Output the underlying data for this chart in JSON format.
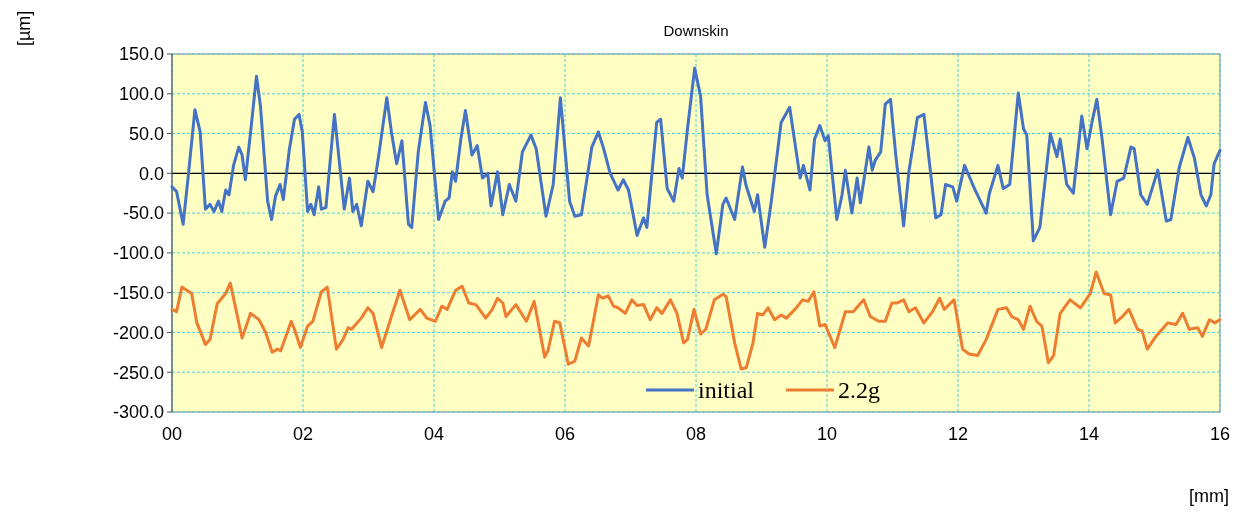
{
  "chart_data": {
    "type": "line",
    "title": "Downskin",
    "xlabel": "[mm]",
    "ylabel": "[µm]",
    "xlim": [
      0,
      16
    ],
    "xticks": [
      {
        "value": 0,
        "label": "00"
      },
      {
        "value": 2,
        "label": "02"
      },
      {
        "value": 4,
        "label": "04"
      },
      {
        "value": 6,
        "label": "06"
      },
      {
        "value": 8,
        "label": "08"
      },
      10,
      12,
      14,
      16
    ],
    "ylim": [
      -300,
      150
    ],
    "yticks": [
      {
        "value": -300,
        "label": "-300.0"
      },
      {
        "value": -250,
        "label": "-250.0"
      },
      {
        "value": -200,
        "label": "-200.0"
      },
      {
        "value": -150,
        "label": "-150.0"
      },
      {
        "value": -100,
        "label": "-100.0"
      },
      {
        "value": -50,
        "label": "-50.0"
      },
      {
        "value": 0,
        "label": "0.0"
      },
      {
        "value": 50,
        "label": "50.0"
      },
      {
        "value": 100,
        "label": "100.0"
      },
      {
        "value": 150,
        "label": "150.0"
      }
    ],
    "grid": true,
    "legend": "bottom",
    "marker": "none",
    "line_style": "solid",
    "ref_lines": [
      {
        "axis": "y",
        "value": 0,
        "color": "#000000"
      }
    ],
    "series": [
      {
        "name": "initial",
        "color": "#4472c4",
        "x": [
          0,
          0.07,
          0.17,
          0.25,
          0.35,
          0.43,
          0.51,
          0.58,
          0.64,
          0.71,
          0.76,
          0.82,
          0.87,
          0.94,
          1.02,
          1.07,
          1.12,
          1.2,
          1.29,
          1.35,
          1.46,
          1.52,
          1.58,
          1.65,
          1.7,
          1.79,
          1.87,
          1.94,
          1.99,
          2.07,
          2.12,
          2.17,
          2.24,
          2.28,
          2.35,
          2.48,
          2.63,
          2.71,
          2.76,
          2.82,
          2.89,
          2.99,
          3.07,
          3.15,
          3.28,
          3.35,
          3.43,
          3.51,
          3.61,
          3.66,
          3.76,
          3.87,
          3.94,
          4.07,
          4.17,
          4.23,
          4.28,
          4.33,
          4.41,
          4.48,
          4.58,
          4.66,
          4.74,
          4.82,
          4.87,
          4.97,
          5.05,
          5.15,
          5.25,
          5.35,
          5.48,
          5.56,
          5.71,
          5.82,
          5.93,
          6.07,
          6.15,
          6.25,
          6.41,
          6.51,
          6.59,
          6.69,
          6.81,
          6.89,
          6.97,
          7.1,
          7.2,
          7.25,
          7.4,
          7.46,
          7.56,
          7.66,
          7.74,
          7.79,
          7.87,
          7.98,
          8.07,
          8.17,
          8.31,
          8.41,
          8.46,
          8.59,
          8.71,
          8.76,
          8.89,
          8.94,
          9.05,
          9.15,
          9.3,
          9.43,
          9.59,
          9.64,
          9.74,
          9.81,
          9.89,
          9.97,
          10.02,
          10.15,
          10.23,
          10.28,
          10.38,
          10.46,
          10.51,
          10.64,
          10.69,
          10.74,
          10.82,
          10.89,
          10.97,
          11.05,
          11.17,
          11.25,
          11.38,
          11.48,
          11.66,
          11.74,
          11.81,
          11.92,
          11.98,
          12.1,
          12.25,
          12.43,
          12.48,
          12.61,
          12.69,
          12.79,
          12.92,
          13,
          13.05,
          13.15,
          13.25,
          13.41,
          13.51,
          13.56,
          13.66,
          13.76,
          13.89,
          13.97,
          14.05,
          14.12,
          14.2,
          14.33,
          14.43,
          14.53,
          14.64,
          14.69,
          14.79,
          14.89,
          15.05,
          15.18,
          15.25,
          15.38,
          15.51,
          15.61,
          15.71,
          15.79,
          15.86,
          15.91,
          16
        ],
        "values": [
          -17,
          -23,
          -64,
          -2,
          80,
          52,
          -45,
          -39,
          -48,
          -35,
          -48,
          -21,
          -27,
          10,
          33,
          23,
          -8,
          52,
          122,
          85,
          -35,
          -58,
          -29,
          -14,
          -33,
          29,
          68,
          74,
          52,
          -48,
          -39,
          -52,
          -17,
          -45,
          -43,
          74,
          -45,
          -6,
          -48,
          -39,
          -66,
          -10,
          -23,
          19,
          95,
          52,
          12,
          41,
          -64,
          -68,
          27,
          89,
          60,
          -58,
          -35,
          -31,
          2,
          -10,
          43,
          79,
          23,
          35,
          -6,
          0,
          -41,
          2,
          -52,
          -14,
          -35,
          27,
          48,
          31,
          -54,
          -14,
          95,
          -35,
          -54,
          -52,
          33,
          52,
          31,
          0,
          -21,
          -8,
          -21,
          -78,
          -56,
          -68,
          64,
          68,
          -19,
          -35,
          6,
          -6,
          56,
          132,
          97,
          -27,
          -101,
          -39,
          -31,
          -58,
          8,
          -14,
          -48,
          -27,
          -93,
          -35,
          64,
          83,
          -6,
          10,
          -21,
          43,
          60,
          41,
          47,
          -58,
          -27,
          4,
          -50,
          -6,
          -37,
          33,
          4,
          17,
          27,
          87,
          93,
          23,
          -66,
          2,
          70,
          74,
          -56,
          -52,
          -14,
          -17,
          -35,
          10,
          -19,
          -50,
          -25,
          10,
          -19,
          -14,
          101,
          56,
          48,
          -85,
          -68,
          50,
          21,
          43,
          -14,
          -25,
          72,
          31,
          66,
          93,
          43,
          -52,
          -10,
          -6,
          33,
          31,
          -27,
          -39,
          4,
          -60,
          -58,
          8,
          45,
          19,
          -27,
          -41,
          -27,
          12,
          29
        ]
      },
      {
        "name": "2.2g",
        "color": "#ed7d31",
        "x": [
          0,
          0.07,
          0.15,
          0.3,
          0.38,
          0.51,
          0.58,
          0.69,
          0.82,
          0.89,
          1.07,
          1.2,
          1.33,
          1.43,
          1.53,
          1.61,
          1.66,
          1.82,
          1.87,
          1.96,
          2.07,
          2.15,
          2.28,
          2.37,
          2.51,
          2.61,
          2.69,
          2.74,
          2.89,
          2.99,
          3.07,
          3.2,
          3.35,
          3.48,
          3.63,
          3.79,
          3.89,
          4.02,
          4.12,
          4.2,
          4.33,
          4.43,
          4.53,
          4.64,
          4.79,
          4.89,
          4.97,
          5.05,
          5.1,
          5.25,
          5.41,
          5.53,
          5.69,
          5.74,
          5.84,
          5.92,
          6.05,
          6.15,
          6.25,
          6.36,
          6.51,
          6.58,
          6.66,
          6.74,
          6.81,
          6.92,
          7.02,
          7.1,
          7.2,
          7.3,
          7.4,
          7.48,
          7.61,
          7.71,
          7.81,
          7.87,
          7.97,
          8.07,
          8.15,
          8.28,
          8.41,
          8.46,
          8.59,
          8.69,
          8.77,
          8.87,
          8.94,
          9.02,
          9.1,
          9.2,
          9.3,
          9.38,
          9.51,
          9.63,
          9.71,
          9.8,
          9.89,
          9.97,
          10.12,
          10.28,
          10.4,
          10.56,
          10.66,
          10.79,
          10.89,
          10.99,
          11.07,
          11.17,
          11.25,
          11.35,
          11.48,
          11.61,
          11.72,
          11.79,
          11.94,
          12.07,
          12.17,
          12.3,
          12.43,
          12.61,
          12.74,
          12.82,
          12.92,
          13,
          13.1,
          13.2,
          13.28,
          13.38,
          13.46,
          13.56,
          13.71,
          13.87,
          14.02,
          14.11,
          14.23,
          14.33,
          14.4,
          14.51,
          14.61,
          14.74,
          14.81,
          14.89,
          15.02,
          15.2,
          15.33,
          15.43,
          15.53,
          15.66,
          15.73,
          15.84,
          15.92,
          16
        ],
        "values": [
          -171,
          -174,
          -143,
          -151,
          -188,
          -215,
          -209,
          -164,
          -151,
          -138,
          -207,
          -176,
          -184,
          -200,
          -225,
          -221,
          -223,
          -186,
          -196,
          -219,
          -192,
          -186,
          -149,
          -143,
          -221,
          -209,
          -194,
          -196,
          -182,
          -169,
          -176,
          -219,
          -180,
          -147,
          -184,
          -171,
          -182,
          -186,
          -167,
          -171,
          -147,
          -142,
          -163,
          -165,
          -182,
          -171,
          -157,
          -163,
          -180,
          -165,
          -186,
          -161,
          -231,
          -223,
          -186,
          -188,
          -240,
          -236,
          -207,
          -217,
          -153,
          -157,
          -154,
          -167,
          -169,
          -176,
          -159,
          -166,
          -165,
          -184,
          -169,
          -176,
          -159,
          -176,
          -213,
          -209,
          -171,
          -202,
          -196,
          -159,
          -152,
          -155,
          -213,
          -246,
          -244,
          -213,
          -176,
          -178,
          -169,
          -184,
          -178,
          -182,
          -171,
          -159,
          -161,
          -149,
          -192,
          -190,
          -219,
          -174,
          -174,
          -159,
          -180,
          -186,
          -186,
          -163,
          -163,
          -159,
          -174,
          -169,
          -188,
          -174,
          -157,
          -171,
          -159,
          -221,
          -227,
          -229,
          -209,
          -171,
          -169,
          -180,
          -184,
          -196,
          -167,
          -186,
          -192,
          -238,
          -229,
          -176,
          -159,
          -169,
          -151,
          -124,
          -151,
          -153,
          -188,
          -180,
          -171,
          -196,
          -198,
          -221,
          -205,
          -188,
          -190,
          -176,
          -196,
          -194,
          -205,
          -184,
          -188,
          -184
        ]
      }
    ]
  }
}
